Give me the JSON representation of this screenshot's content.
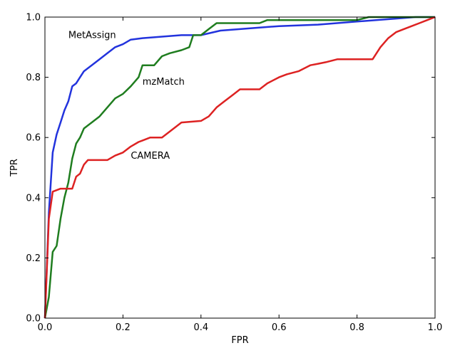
{
  "chart_data": {
    "type": "line",
    "title": "",
    "xlabel": "FPR",
    "ylabel": "TPR",
    "xlim": [
      0.0,
      1.0
    ],
    "ylim": [
      0.0,
      1.0
    ],
    "xticks": [
      "0.0",
      "0.2",
      "0.4",
      "0.6",
      "0.8",
      "1.0"
    ],
    "yticks": [
      "0.0",
      "0.2",
      "0.4",
      "0.6",
      "0.8",
      "1.0"
    ],
    "grid": false,
    "legend": "none",
    "annotations": [
      {
        "text": "MetAssign",
        "x": 0.06,
        "y": 0.93
      },
      {
        "text": "mzMatch",
        "x": 0.25,
        "y": 0.775
      },
      {
        "text": "CAMERA",
        "x": 0.22,
        "y": 0.53
      }
    ],
    "series": [
      {
        "name": "MetAssign",
        "color": "#2233dd",
        "x": [
          0,
          0.01,
          0.02,
          0.03,
          0.04,
          0.05,
          0.06,
          0.07,
          0.08,
          0.09,
          0.1,
          0.12,
          0.14,
          0.16,
          0.18,
          0.2,
          0.22,
          0.25,
          0.3,
          0.35,
          0.4,
          0.45,
          0.5,
          0.55,
          0.6,
          0.7,
          0.8,
          0.9,
          0.95,
          1.0
        ],
        "y": [
          0,
          0.35,
          0.55,
          0.61,
          0.65,
          0.69,
          0.72,
          0.77,
          0.78,
          0.8,
          0.82,
          0.84,
          0.86,
          0.88,
          0.9,
          0.91,
          0.925,
          0.93,
          0.935,
          0.94,
          0.94,
          0.955,
          0.96,
          0.965,
          0.97,
          0.975,
          0.985,
          0.995,
          1.0,
          1.0
        ]
      },
      {
        "name": "mzMatch",
        "color": "#1f7d1f",
        "x": [
          0,
          0.01,
          0.02,
          0.03,
          0.04,
          0.05,
          0.06,
          0.07,
          0.08,
          0.09,
          0.1,
          0.12,
          0.14,
          0.16,
          0.18,
          0.2,
          0.22,
          0.24,
          0.25,
          0.28,
          0.3,
          0.32,
          0.35,
          0.37,
          0.38,
          0.4,
          0.42,
          0.44,
          0.5,
          0.55,
          0.57,
          0.6,
          0.7,
          0.8,
          0.83,
          1.0
        ],
        "y": [
          0,
          0.07,
          0.22,
          0.24,
          0.33,
          0.4,
          0.45,
          0.53,
          0.58,
          0.6,
          0.63,
          0.65,
          0.67,
          0.7,
          0.73,
          0.745,
          0.77,
          0.8,
          0.84,
          0.84,
          0.87,
          0.88,
          0.89,
          0.9,
          0.94,
          0.94,
          0.96,
          0.98,
          0.98,
          0.98,
          0.99,
          0.99,
          0.99,
          0.99,
          1.0,
          1.0
        ]
      },
      {
        "name": "CAMERA",
        "color": "#dd2222",
        "x": [
          0,
          0.01,
          0.02,
          0.04,
          0.05,
          0.07,
          0.08,
          0.09,
          0.1,
          0.11,
          0.16,
          0.18,
          0.2,
          0.22,
          0.24,
          0.25,
          0.27,
          0.3,
          0.35,
          0.4,
          0.42,
          0.44,
          0.46,
          0.48,
          0.5,
          0.55,
          0.57,
          0.6,
          0.62,
          0.65,
          0.68,
          0.7,
          0.72,
          0.75,
          0.8,
          0.84,
          0.86,
          0.88,
          0.9,
          0.92,
          0.94,
          0.96,
          0.98,
          1.0
        ],
        "y": [
          0,
          0.33,
          0.42,
          0.43,
          0.43,
          0.43,
          0.47,
          0.48,
          0.51,
          0.525,
          0.525,
          0.54,
          0.55,
          0.57,
          0.585,
          0.59,
          0.6,
          0.6,
          0.65,
          0.655,
          0.67,
          0.7,
          0.72,
          0.74,
          0.76,
          0.76,
          0.78,
          0.8,
          0.81,
          0.82,
          0.84,
          0.845,
          0.85,
          0.86,
          0.86,
          0.86,
          0.9,
          0.93,
          0.95,
          0.96,
          0.97,
          0.98,
          0.99,
          1.0
        ]
      }
    ]
  }
}
